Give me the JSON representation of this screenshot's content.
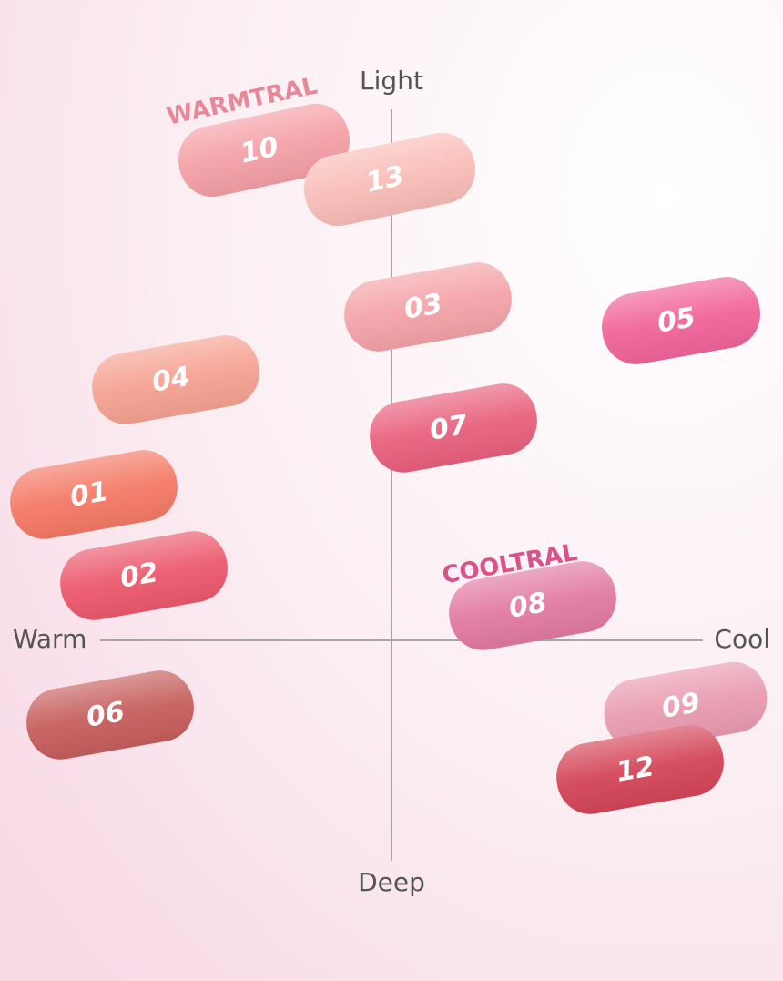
{
  "axes": {
    "top": "Light",
    "bottom": "Deep",
    "left": "Warm",
    "right": "Cool"
  },
  "groups": [
    "WARMTRAL",
    "COOLTRAL"
  ],
  "swatches": [
    "10",
    "13",
    "03",
    "05",
    "04",
    "07",
    "01",
    "02",
    "08",
    "06",
    "09",
    "12"
  ]
}
